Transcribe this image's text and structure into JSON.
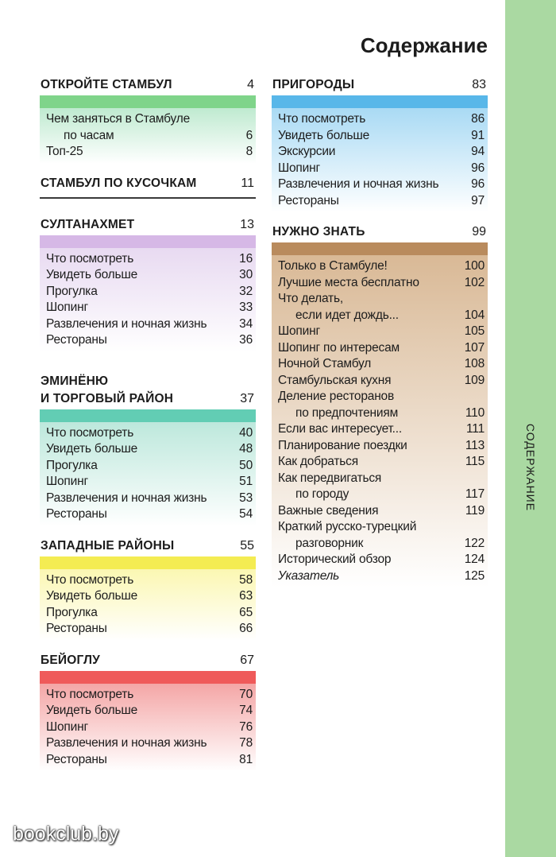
{
  "page_title": "Содержание",
  "side_tab_label": "СОДЕРЖАНИЕ",
  "watermark": "bookclub.by",
  "colors": {
    "side_tab": "#aad9a2",
    "green": "#7fd48a",
    "purple": "#d6b8e6",
    "teal": "#62cdb4",
    "yellow": "#f4ec52",
    "red": "#ef5a5a",
    "blue": "#58b7e9",
    "brown": "#b98b5d"
  },
  "left_column": {
    "s1": {
      "title": "ОТКРОЙТЕ СТАМБУЛ",
      "page": "4",
      "items": [
        {
          "label": "Чем заняться в Стамбуле",
          "cont": "по часам",
          "page": "6"
        },
        {
          "label": "Топ-25",
          "page": "8"
        }
      ]
    },
    "s2": {
      "title": "СТАМБУЛ ПО КУСОЧКАМ",
      "page": "11"
    },
    "s3": {
      "title": "СУЛТАНАХМЕТ",
      "page": "13",
      "items": [
        {
          "label": "Что посмотреть",
          "page": "16"
        },
        {
          "label": "Увидеть больше",
          "page": "30"
        },
        {
          "label": "Прогулка",
          "page": "32"
        },
        {
          "label": "Шопинг",
          "page": "33"
        },
        {
          "label": "Развлечения и ночная жизнь",
          "page": "34"
        },
        {
          "label": "Рестораны",
          "page": "36"
        }
      ]
    },
    "s4": {
      "title_line1": "ЭМИНЁНЮ",
      "title_line2": "И ТОРГОВЫЙ РАЙОН",
      "page": "37",
      "items": [
        {
          "label": "Что посмотреть",
          "page": "40"
        },
        {
          "label": "Увидеть больше",
          "page": "48"
        },
        {
          "label": "Прогулка",
          "page": "50"
        },
        {
          "label": "Шопинг",
          "page": "51"
        },
        {
          "label": "Развлечения и ночная жизнь",
          "page": "53"
        },
        {
          "label": "Рестораны",
          "page": "54"
        }
      ]
    },
    "s5": {
      "title": "ЗАПАДНЫЕ РАЙОНЫ",
      "page": "55",
      "items": [
        {
          "label": "Что посмотреть",
          "page": "58"
        },
        {
          "label": "Увидеть больше",
          "page": "63"
        },
        {
          "label": "Прогулка",
          "page": "65"
        },
        {
          "label": "Рестораны",
          "page": "66"
        }
      ]
    },
    "s6": {
      "title": "БЕЙОГЛУ",
      "page": "67",
      "items": [
        {
          "label": "Что посмотреть",
          "page": "70"
        },
        {
          "label": "Увидеть больше",
          "page": "74"
        },
        {
          "label": "Шопинг",
          "page": "76"
        },
        {
          "label": "Развлечения и ночная жизнь",
          "page": "78"
        },
        {
          "label": "Рестораны",
          "page": "81"
        }
      ]
    }
  },
  "right_column": {
    "s7": {
      "title": "ПРИГОРОДЫ",
      "page": "83",
      "items": [
        {
          "label": "Что посмотреть",
          "page": "86"
        },
        {
          "label": "Увидеть больше",
          "page": "91"
        },
        {
          "label": "Экскурсии",
          "page": "94"
        },
        {
          "label": "Шопинг",
          "page": "96"
        },
        {
          "label": "Развлечения и ночная жизнь",
          "page": "96"
        },
        {
          "label": "Рестораны",
          "page": "97"
        }
      ]
    },
    "s8": {
      "title": "НУЖНО ЗНАТЬ",
      "page": "99",
      "items": [
        {
          "label": "Только в Стамбуле!",
          "page": "100"
        },
        {
          "label": "Лучшие места бесплатно",
          "page": "102"
        },
        {
          "label": "Что делать,",
          "cont": "если идет дождь...",
          "page": "104"
        },
        {
          "label": "Шопинг",
          "page": "105"
        },
        {
          "label": "Шопинг по интересам",
          "page": "107"
        },
        {
          "label": "Ночной Стамбул",
          "page": "108"
        },
        {
          "label": "Стамбульская кухня",
          "page": "109"
        },
        {
          "label": "Деление ресторанов",
          "cont": "по предпочтениям",
          "page": "110"
        },
        {
          "label": "Если вас интересует...",
          "page": "111"
        },
        {
          "label": "Планирование поездки",
          "page": "113"
        },
        {
          "label": "Как добраться",
          "page": "115"
        },
        {
          "label": "Как передвигаться",
          "cont": "по городу",
          "page": "117"
        },
        {
          "label": "Важные сведения",
          "page": "119"
        },
        {
          "label": "Краткий русско-турецкий",
          "cont": "разговорник",
          "page": "122"
        },
        {
          "label": "Исторический обзор",
          "page": "124"
        },
        {
          "label": "Указатель",
          "page": "125",
          "italic": true
        }
      ]
    }
  }
}
